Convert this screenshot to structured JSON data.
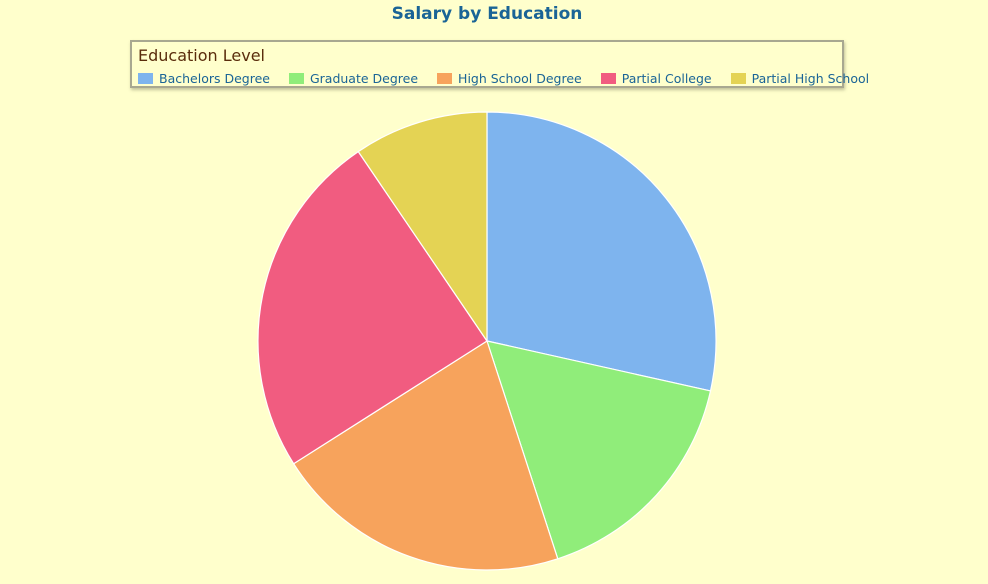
{
  "chart_data": {
    "type": "pie",
    "title": "Salary by Education",
    "legend_title": "Education Level",
    "legend_placement": "top-center",
    "categories": [
      "Bachelors Degree",
      "Graduate Degree",
      "High School Degree",
      "Partial College",
      "Partial High School"
    ],
    "values": [
      28.5,
      16.5,
      21.0,
      24.5,
      9.5
    ],
    "colors": [
      "#7eb4ee",
      "#90ed7a",
      "#f7a35c",
      "#f15c80",
      "#e4d354"
    ]
  }
}
